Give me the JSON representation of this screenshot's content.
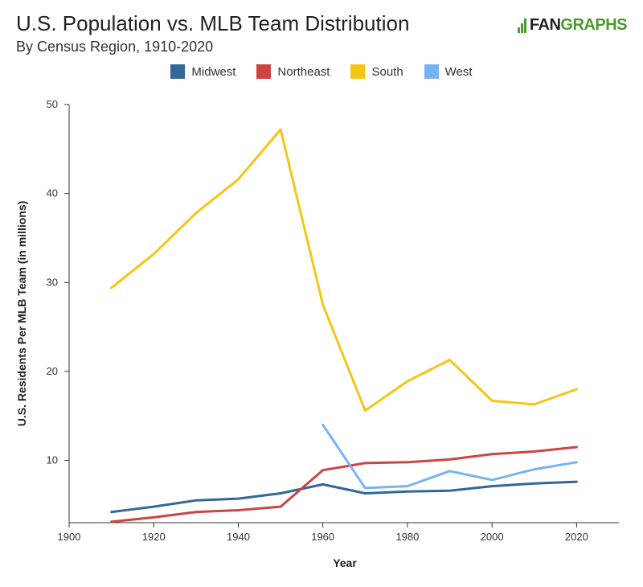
{
  "header": {
    "title": "U.S. Population vs. MLB Team Distribution",
    "subtitle": "By Census Region, 1910-2020",
    "logo_text_fan": "FAN",
    "logo_text_graphs": "GRAPHS"
  },
  "chart_data": {
    "type": "line",
    "xlabel": "Year",
    "ylabel": "U.S. Residents Per MLB Team (in millions)",
    "xlim": [
      1900,
      2030
    ],
    "ylim": [
      3,
      50
    ],
    "x_ticks": [
      1900,
      1920,
      1940,
      1960,
      1980,
      2000,
      2020
    ],
    "y_ticks": [
      10,
      20,
      30,
      40,
      50
    ],
    "grid": false,
    "legend_position": "top-center",
    "series": [
      {
        "name": "Midwest",
        "color": "#336699",
        "x": [
          1910,
          1920,
          1930,
          1940,
          1950,
          1960,
          1970,
          1980,
          1990,
          2000,
          2010,
          2020
        ],
        "values": [
          4.2,
          4.8,
          5.5,
          5.7,
          6.3,
          7.3,
          6.3,
          6.5,
          6.6,
          7.1,
          7.4,
          7.6
        ]
      },
      {
        "name": "Northeast",
        "color": "#cc4444",
        "x": [
          1910,
          1920,
          1930,
          1940,
          1950,
          1960,
          1970,
          1980,
          1990,
          2000,
          2010,
          2020
        ],
        "values": [
          3.1,
          3.6,
          4.2,
          4.4,
          4.8,
          8.9,
          9.7,
          9.8,
          10.1,
          10.7,
          11.0,
          11.5
        ]
      },
      {
        "name": "South",
        "color": "#f5c518",
        "x": [
          1910,
          1920,
          1930,
          1940,
          1950,
          1960,
          1970,
          1980,
          1990,
          2000,
          2010,
          2020
        ],
        "values": [
          29.4,
          33.2,
          37.8,
          41.6,
          47.2,
          27.5,
          15.6,
          18.9,
          21.3,
          16.7,
          16.3,
          18.0
        ]
      },
      {
        "name": "West",
        "color": "#77b3f2",
        "x": [
          1960,
          1970,
          1980,
          1990,
          2000,
          2010,
          2020
        ],
        "values": [
          14.0,
          6.9,
          7.1,
          8.8,
          7.8,
          9.0,
          9.8
        ]
      }
    ]
  }
}
